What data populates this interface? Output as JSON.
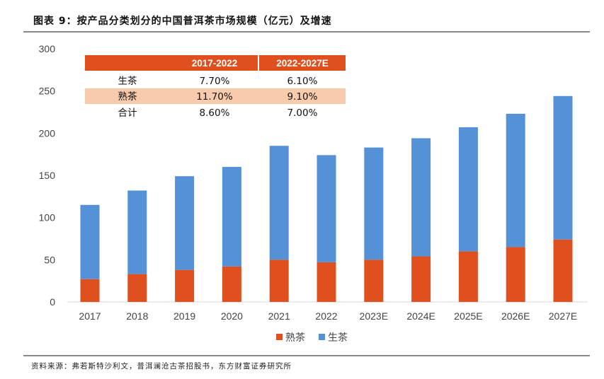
{
  "title": "图表 9：按产品分类划分的中国普洱茶市场规模（亿元）及增速",
  "source": "资料来源：弗若斯特沙利文，普洱澜沧古茶招股书，东方财富证券研究所",
  "colors": {
    "shucha": "#E0501E",
    "shengcha": "#5591D6",
    "table_header": "#E0501E",
    "table_highlight": "#F9CBAD"
  },
  "table": {
    "headers": [
      "",
      "2017-2022",
      "2022-2027E"
    ],
    "rows": [
      {
        "label": "生茶",
        "v1": "7.70%",
        "v2": "6.10%"
      },
      {
        "label": "熟茶",
        "v1": "11.70%",
        "v2": "9.10%"
      },
      {
        "label": "合计",
        "v1": "8.60%",
        "v2": "7.00%"
      }
    ]
  },
  "chart_data": {
    "type": "bar",
    "stacked": true,
    "title": "按产品分类划分的中国普洱茶市场规模（亿元）及增速",
    "categories": [
      "2017",
      "2018",
      "2019",
      "2020",
      "2021",
      "2022",
      "2023E",
      "2024E",
      "2025E",
      "2026E",
      "2027E"
    ],
    "series": [
      {
        "name": "熟茶",
        "values": [
          27,
          33,
          38,
          42,
          50,
          47,
          50,
          54,
          60,
          65,
          74
        ]
      },
      {
        "name": "生茶",
        "values": [
          88,
          99,
          111,
          118,
          135,
          127,
          133,
          140,
          147,
          158,
          170
        ]
      }
    ],
    "ylim": [
      0,
      300
    ],
    "yticks": [
      0,
      50,
      100,
      150,
      200,
      250,
      300
    ],
    "legend_position": "bottom",
    "grid": false
  }
}
